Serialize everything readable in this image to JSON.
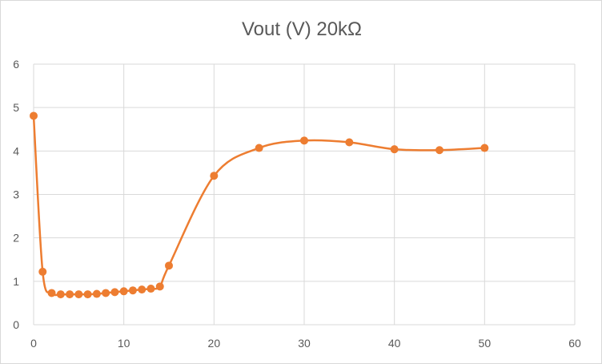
{
  "chart_data": {
    "type": "scatter",
    "title": "Vout (V) 20kΩ",
    "xlabel": "",
    "ylabel": "",
    "xlim": [
      0,
      60
    ],
    "ylim": [
      0,
      6
    ],
    "x_ticks": [
      0,
      10,
      20,
      30,
      40,
      50,
      60
    ],
    "y_ticks": [
      0,
      1,
      2,
      3,
      4,
      5,
      6
    ],
    "grid": true,
    "smooth_line": true,
    "color": "#ED7D31",
    "series": [
      {
        "x": [
          0,
          1,
          2,
          3,
          4,
          5,
          6,
          7,
          8,
          9,
          10,
          11,
          12,
          13,
          14,
          15,
          20,
          25,
          30,
          35,
          40,
          45,
          50
        ],
        "y": [
          4.81,
          1.22,
          0.73,
          0.7,
          0.7,
          0.7,
          0.7,
          0.71,
          0.73,
          0.75,
          0.77,
          0.79,
          0.81,
          0.83,
          0.88,
          1.36,
          3.43,
          4.07,
          4.24,
          4.2,
          4.04,
          4.02,
          4.07
        ]
      }
    ]
  }
}
